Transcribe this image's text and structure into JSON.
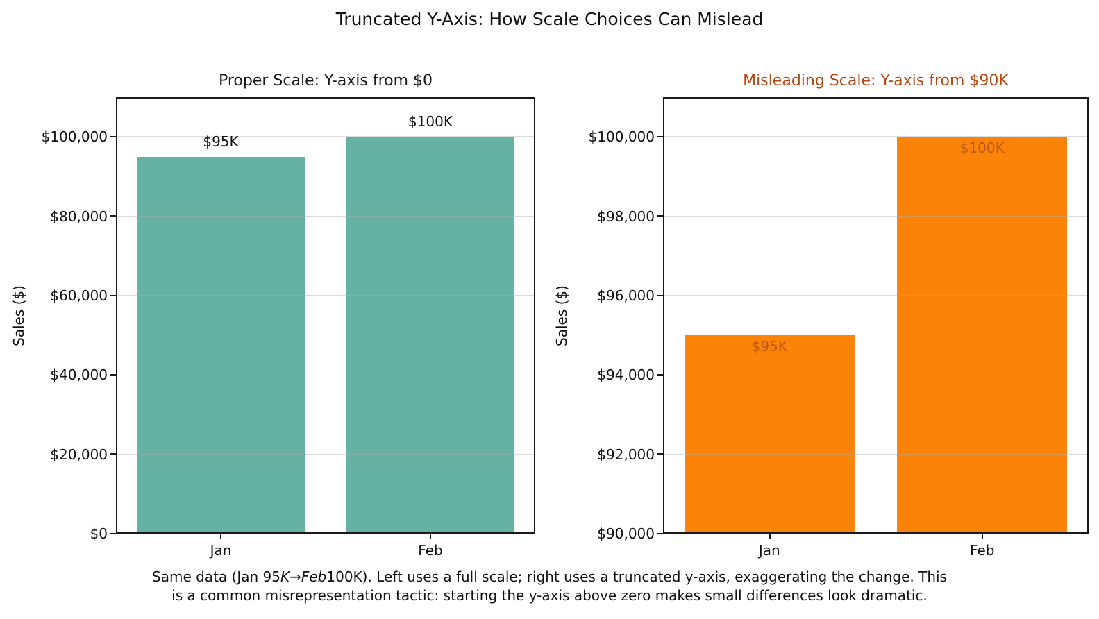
{
  "figure": {
    "title": "Truncated Y-Axis: How Scale Choices Can Mislead",
    "background_color": "#ffffff"
  },
  "caption": {
    "line1_segments": [
      {
        "text": "Same data (Jan 95",
        "italic": false
      },
      {
        "text": "K",
        "italic": true
      },
      {
        "text": "→",
        "italic": false
      },
      {
        "text": "Feb",
        "italic": true
      },
      {
        "text": "100K). Left uses a full scale; right uses a truncated y-axis, exaggerating the change. This",
        "italic": false
      }
    ],
    "line2": "is a common misrepresentation tactic: starting the y-axis above zero makes small differences look dramatic."
  },
  "chart_data": [
    {
      "id": "proper-scale",
      "type": "bar",
      "title": "Proper Scale: Y-axis from $0",
      "title_color": "#1a1a1a",
      "ylabel": "Sales ($)",
      "xlabel": "",
      "categories": [
        "Jan",
        "Feb"
      ],
      "values": [
        95000,
        100000
      ],
      "bar_labels": [
        "$95K",
        "$100K"
      ],
      "bar_label_position": "above",
      "bar_label_color": "#111111",
      "bar_color": "#66b2a2",
      "ylim": [
        0,
        110000
      ],
      "yticks": [
        0,
        20000,
        40000,
        60000,
        80000,
        100000
      ],
      "ytick_labels": [
        "$0",
        "$20,000",
        "$40,000",
        "$60,000",
        "$80,000",
        "$100,000"
      ],
      "grid": true,
      "legend": "none"
    },
    {
      "id": "misleading-scale",
      "type": "bar",
      "title": "Misleading Scale: Y-axis from $90K",
      "title_color": "#b34a14",
      "ylabel": "Sales ($)",
      "xlabel": "",
      "categories": [
        "Jan",
        "Feb"
      ],
      "values": [
        95000,
        100000
      ],
      "bar_labels": [
        "$95K",
        "$100K"
      ],
      "bar_label_position": "inside",
      "bar_label_color": "#c05614",
      "bar_color": "#fb8408",
      "ylim": [
        90000,
        101000
      ],
      "yticks": [
        90000,
        92000,
        94000,
        96000,
        98000,
        100000
      ],
      "ytick_labels": [
        "$90,000",
        "$92,000",
        "$94,000",
        "$96,000",
        "$98,000",
        "$100,000"
      ],
      "grid": true,
      "legend": "none"
    }
  ]
}
